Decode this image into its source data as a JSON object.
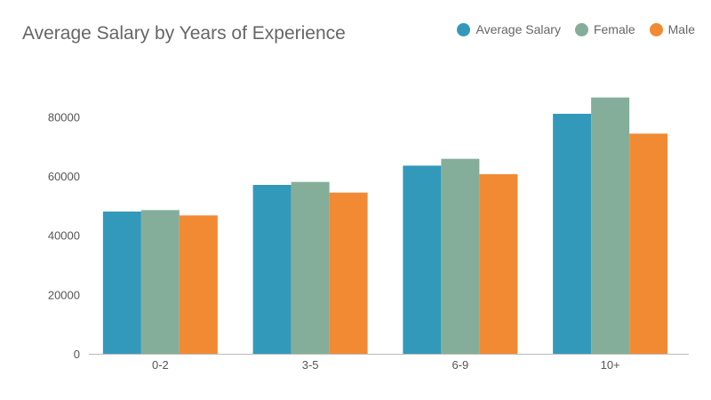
{
  "chart_data": {
    "type": "bar",
    "title": "Average Salary by Years of Experience",
    "xlabel": "",
    "ylabel": "",
    "categories": [
      "0-2",
      "3-5",
      "6-9",
      "10+"
    ],
    "series": [
      {
        "name": "Average Salary",
        "color": "#3399bb",
        "values": [
          48000,
          57000,
          63500,
          81000
        ]
      },
      {
        "name": "Female",
        "color": "#84ae99",
        "values": [
          48500,
          58000,
          65800,
          86500
        ]
      },
      {
        "name": "Male",
        "color": "#f28a33",
        "values": [
          46700,
          54400,
          60600,
          74300
        ]
      }
    ],
    "ylim": [
      0,
      90000
    ],
    "yticks": [
      "0",
      "20000",
      "40000",
      "60000",
      "80000"
    ],
    "grid": false,
    "legend_position": "top-right"
  }
}
